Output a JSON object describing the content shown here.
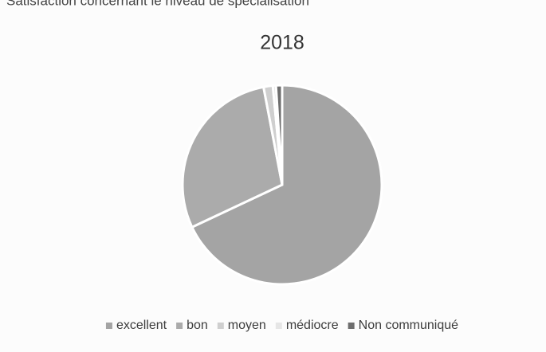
{
  "chart_data": {
    "type": "pie",
    "subtitle": "Satisfaction concernant le niveau de spécialisation",
    "title": "2018",
    "categories": [
      "excellent",
      "bon",
      "moyen",
      "médiocre",
      "Non communiqué"
    ],
    "values": [
      68,
      29,
      1.5,
      0.5,
      1
    ],
    "colors": [
      "#a4a4a4",
      "#ababab",
      "#cfcfcf",
      "#e6e6e6",
      "#6e6e6e"
    ],
    "legend": "bottom"
  }
}
